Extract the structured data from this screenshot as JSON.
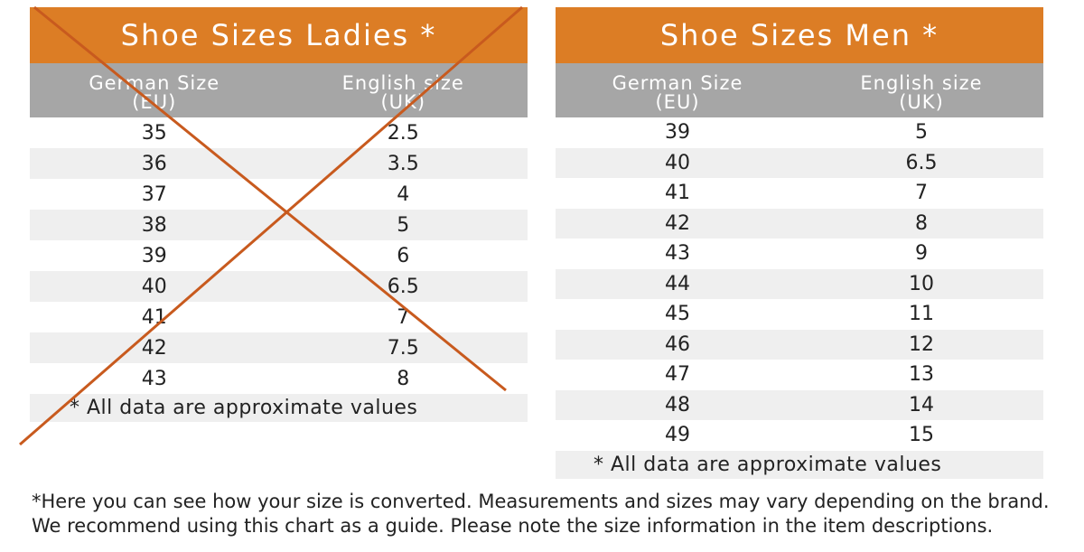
{
  "ladies": {
    "title": "Shoe Sizes Ladies *",
    "col_german": "German Size",
    "col_german_unit": "(EU)",
    "col_english": "English size",
    "col_english_unit": "(UK)",
    "rows": [
      {
        "eu": "35",
        "uk": "2.5"
      },
      {
        "eu": "36",
        "uk": "3.5"
      },
      {
        "eu": "37",
        "uk": "4"
      },
      {
        "eu": "38",
        "uk": "5"
      },
      {
        "eu": "39",
        "uk": "6"
      },
      {
        "eu": "40",
        "uk": "6.5"
      },
      {
        "eu": "41",
        "uk": "7"
      },
      {
        "eu": "42",
        "uk": "7.5"
      },
      {
        "eu": "43",
        "uk": "8"
      }
    ],
    "note": "* All data are approximate values",
    "crossed_out": true
  },
  "men": {
    "title": "Shoe Sizes Men *",
    "col_german": "German Size",
    "col_german_unit": "(EU)",
    "col_english": "English size",
    "col_english_unit": "(UK)",
    "rows": [
      {
        "eu": "39",
        "uk": "5"
      },
      {
        "eu": "40",
        "uk": "6.5"
      },
      {
        "eu": "41",
        "uk": "7"
      },
      {
        "eu": "42",
        "uk": "8"
      },
      {
        "eu": "43",
        "uk": "9"
      },
      {
        "eu": "44",
        "uk": "10"
      },
      {
        "eu": "45",
        "uk": "11"
      },
      {
        "eu": "46",
        "uk": "12"
      },
      {
        "eu": "47",
        "uk": "13"
      },
      {
        "eu": "48",
        "uk": "14"
      },
      {
        "eu": "49",
        "uk": "15"
      }
    ],
    "note": "* All data are approximate values"
  },
  "footer": {
    "line1": "*Here you can see how your size is converted. Measurements and sizes may vary depending on the brand.",
    "line2": "We recommend using this chart as a guide. Please note the size information in the item descriptions."
  },
  "colors": {
    "title_bg": "#dc7d25",
    "header_bg": "#a6a6a6",
    "stripe_bg": "#efefef",
    "cross": "#c85a1e"
  }
}
